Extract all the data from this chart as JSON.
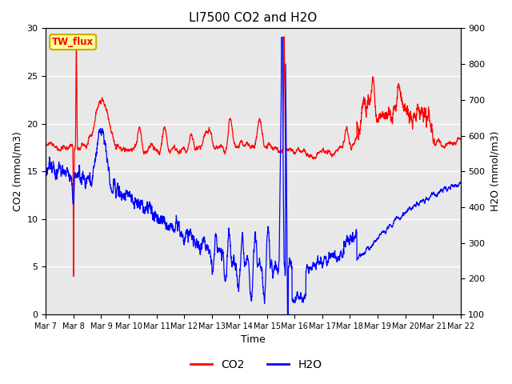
{
  "title": "LI7500 CO2 and H2O",
  "xlabel": "Time",
  "ylabel_left": "CO2 (mmol/m3)",
  "ylabel_right": "H2O (mmol/m3)",
  "ylim_left": [
    0,
    30
  ],
  "ylim_right": [
    100,
    900
  ],
  "xtick_labels": [
    "Mar 7",
    "Mar 8",
    "Mar 9",
    "Mar 10",
    "Mar 11",
    "Mar 12",
    "Mar 13",
    "Mar 14",
    "Mar 15",
    "Mar 16",
    "Mar 17",
    "Mar 18",
    "Mar 19",
    "Mar 20",
    "Mar 21",
    "Mar 22"
  ],
  "yticks_left": [
    0,
    5,
    10,
    15,
    20,
    25,
    30
  ],
  "yticks_right": [
    100,
    200,
    300,
    400,
    500,
    600,
    700,
    800,
    900
  ],
  "co2_color": "#FF0000",
  "h2o_color": "#0000FF",
  "background_color": "#E8E8E8",
  "box_color": "#FFFF99",
  "box_border_color": "#CCAA00",
  "box_text": "TW_flux",
  "legend_co2": "CO2",
  "legend_h2o": "H2O",
  "title_fontsize": 11,
  "axis_fontsize": 9,
  "tick_fontsize": 8,
  "legend_fontsize": 10,
  "line_width": 0.9,
  "num_points": 3000
}
